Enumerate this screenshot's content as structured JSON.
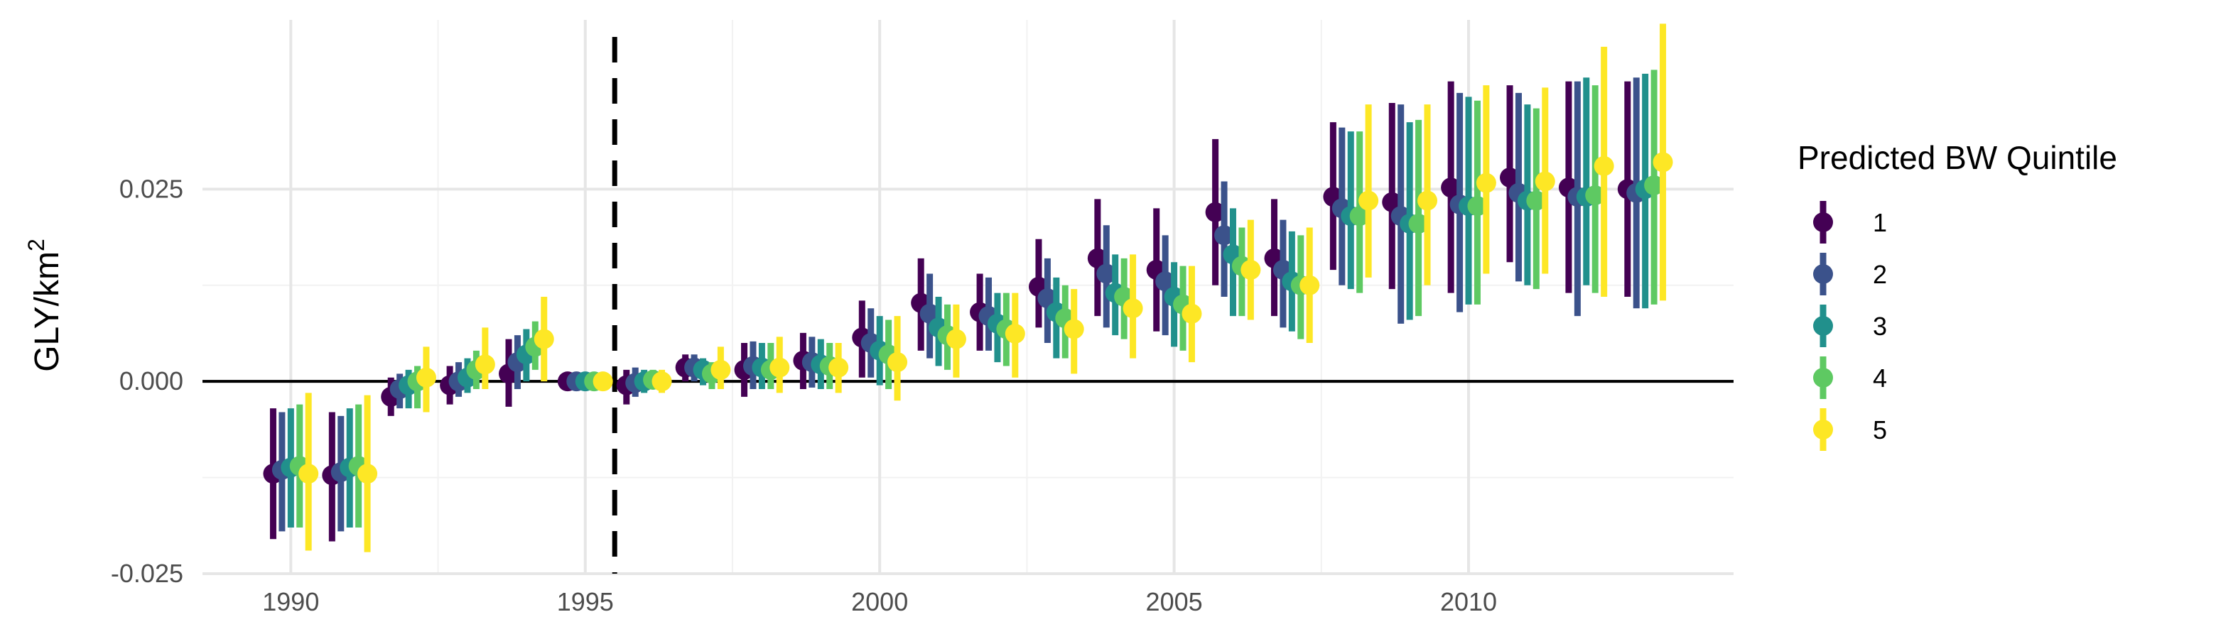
{
  "chart_data": {
    "type": "scatter",
    "subtype": "point-range",
    "title": "",
    "xlabel": "",
    "ylabel": "GLY/km",
    "ylabel_superscript": "2",
    "xlim": [
      1988.5,
      2014.5
    ],
    "ylim": [
      -0.025,
      0.047
    ],
    "x_ticks": [
      1990,
      1995,
      2000,
      2005,
      2010
    ],
    "y_ticks": [
      -0.025,
      0.0,
      0.025
    ],
    "y_tick_labels": [
      "-0.025",
      "0.000",
      "0.025"
    ],
    "reference_hline": 0.0,
    "reference_vline": 1995.5,
    "grid": true,
    "legend": {
      "title": "Predicted BW Quintile",
      "position": "right"
    },
    "x": [
      1990,
      1991,
      1992,
      1993,
      1994,
      1995,
      1996,
      1997,
      1998,
      1999,
      2000,
      2001,
      2002,
      2003,
      2004,
      2005,
      2006,
      2007,
      2008,
      2009,
      2010,
      2011,
      2012,
      2013
    ],
    "series": [
      {
        "name": "1",
        "color": "#440154",
        "values": [
          -0.012,
          -0.0122,
          -0.002,
          -0.0005,
          0.001,
          0.0,
          -0.0005,
          0.0018,
          0.0015,
          0.0027,
          0.0057,
          0.0102,
          0.009,
          0.0123,
          0.016,
          0.0145,
          0.022,
          0.016,
          0.024,
          0.0233,
          0.0252,
          0.0265,
          0.0252,
          0.025
        ],
        "lower": [
          -0.0205,
          -0.0208,
          -0.0045,
          -0.003,
          -0.0033,
          0.0,
          -0.003,
          0.0,
          -0.002,
          -0.001,
          0.0005,
          0.004,
          0.004,
          0.007,
          0.0085,
          0.0065,
          0.0125,
          0.0085,
          0.0145,
          0.012,
          0.0115,
          0.0155,
          0.0115,
          0.011
        ],
        "upper": [
          -0.0035,
          -0.004,
          0.0005,
          0.002,
          0.0055,
          0.0,
          0.0015,
          0.0035,
          0.005,
          0.0063,
          0.0105,
          0.016,
          0.014,
          0.0185,
          0.0237,
          0.0225,
          0.0315,
          0.0237,
          0.0337,
          0.0362,
          0.039,
          0.0385,
          0.039,
          0.039
        ]
      },
      {
        "name": "2",
        "color": "#3b528b",
        "values": [
          -0.0115,
          -0.0118,
          -0.001,
          0.0,
          0.0025,
          0.0,
          -0.0002,
          0.0018,
          0.002,
          0.0025,
          0.005,
          0.0088,
          0.0085,
          0.0108,
          0.014,
          0.013,
          0.019,
          0.0145,
          0.0225,
          0.0215,
          0.023,
          0.0245,
          0.024,
          0.0245
        ],
        "lower": [
          -0.0195,
          -0.0195,
          -0.0035,
          -0.002,
          -0.001,
          0.0,
          -0.002,
          0.0,
          -0.001,
          -0.0008,
          0.0005,
          0.003,
          0.004,
          0.005,
          0.007,
          0.006,
          0.011,
          0.007,
          0.0125,
          0.0075,
          0.009,
          0.013,
          0.0085,
          0.0095
        ],
        "upper": [
          -0.004,
          -0.0045,
          0.001,
          0.0025,
          0.006,
          0.0,
          0.0018,
          0.0035,
          0.0052,
          0.0058,
          0.0095,
          0.014,
          0.0135,
          0.016,
          0.0203,
          0.019,
          0.026,
          0.021,
          0.033,
          0.036,
          0.0375,
          0.0375,
          0.039,
          0.0395
        ]
      },
      {
        "name": "3",
        "color": "#21908c",
        "values": [
          -0.0112,
          -0.0112,
          -0.0005,
          0.0005,
          0.0035,
          0.0,
          0.0,
          0.0015,
          0.0018,
          0.0022,
          0.004,
          0.007,
          0.0075,
          0.009,
          0.0115,
          0.011,
          0.0165,
          0.013,
          0.0215,
          0.0205,
          0.0228,
          0.0235,
          0.024,
          0.025
        ],
        "lower": [
          -0.019,
          -0.019,
          -0.0035,
          -0.0015,
          0.0,
          0.0,
          -0.0015,
          -0.0005,
          -0.001,
          -0.001,
          -0.0005,
          0.002,
          0.0025,
          0.003,
          0.006,
          0.0045,
          0.0085,
          0.0065,
          0.012,
          0.008,
          0.01,
          0.0125,
          0.0125,
          0.0095
        ],
        "upper": [
          -0.0035,
          -0.0035,
          0.0015,
          0.003,
          0.0068,
          0.0,
          0.0015,
          0.003,
          0.005,
          0.0055,
          0.0085,
          0.011,
          0.0115,
          0.0135,
          0.0165,
          0.0155,
          0.0225,
          0.0195,
          0.0325,
          0.0337,
          0.037,
          0.036,
          0.0395,
          0.04
        ]
      },
      {
        "name": "4",
        "color": "#5ec962",
        "values": [
          -0.011,
          -0.011,
          0.0,
          0.0015,
          0.0045,
          0.0,
          0.0002,
          0.001,
          0.0015,
          0.002,
          0.0035,
          0.006,
          0.0068,
          0.0082,
          0.011,
          0.01,
          0.015,
          0.0125,
          0.0215,
          0.0205,
          0.0228,
          0.0235,
          0.0242,
          0.0255
        ],
        "lower": [
          -0.019,
          -0.019,
          -0.0035,
          -0.001,
          0.0015,
          0.0,
          -0.001,
          -0.001,
          -0.001,
          -0.001,
          -0.001,
          0.0015,
          0.002,
          0.003,
          0.0055,
          0.004,
          0.0085,
          0.0055,
          0.0115,
          0.0085,
          0.01,
          0.012,
          0.0115,
          0.01
        ],
        "upper": [
          -0.003,
          -0.003,
          0.002,
          0.004,
          0.0078,
          0.0,
          0.0015,
          0.0025,
          0.005,
          0.005,
          0.008,
          0.01,
          0.0115,
          0.0125,
          0.016,
          0.015,
          0.02,
          0.019,
          0.0325,
          0.034,
          0.0365,
          0.0355,
          0.0385,
          0.0405
        ]
      },
      {
        "name": "5",
        "color": "#fde725",
        "values": [
          -0.012,
          -0.012,
          0.0005,
          0.0022,
          0.0055,
          0.0,
          0.0,
          0.0015,
          0.0018,
          0.0018,
          0.0025,
          0.0055,
          0.0062,
          0.0068,
          0.0095,
          0.0088,
          0.0145,
          0.0125,
          0.0235,
          0.0235,
          0.0258,
          0.026,
          0.028,
          0.0285
        ],
        "lower": [
          -0.022,
          -0.0222,
          -0.004,
          -0.001,
          0.0,
          0.0,
          -0.0015,
          -0.001,
          -0.0015,
          -0.0015,
          -0.0025,
          0.0005,
          0.0005,
          0.001,
          0.003,
          0.0025,
          0.008,
          0.005,
          0.0135,
          0.0125,
          0.014,
          0.014,
          0.011,
          0.0105
        ],
        "upper": [
          -0.0015,
          -0.0018,
          0.0045,
          0.007,
          0.011,
          0.0,
          0.0015,
          0.0045,
          0.0058,
          0.005,
          0.0085,
          0.01,
          0.0115,
          0.012,
          0.0165,
          0.015,
          0.021,
          0.02,
          0.036,
          0.036,
          0.0385,
          0.0382,
          0.0435,
          0.0465
        ]
      }
    ]
  }
}
